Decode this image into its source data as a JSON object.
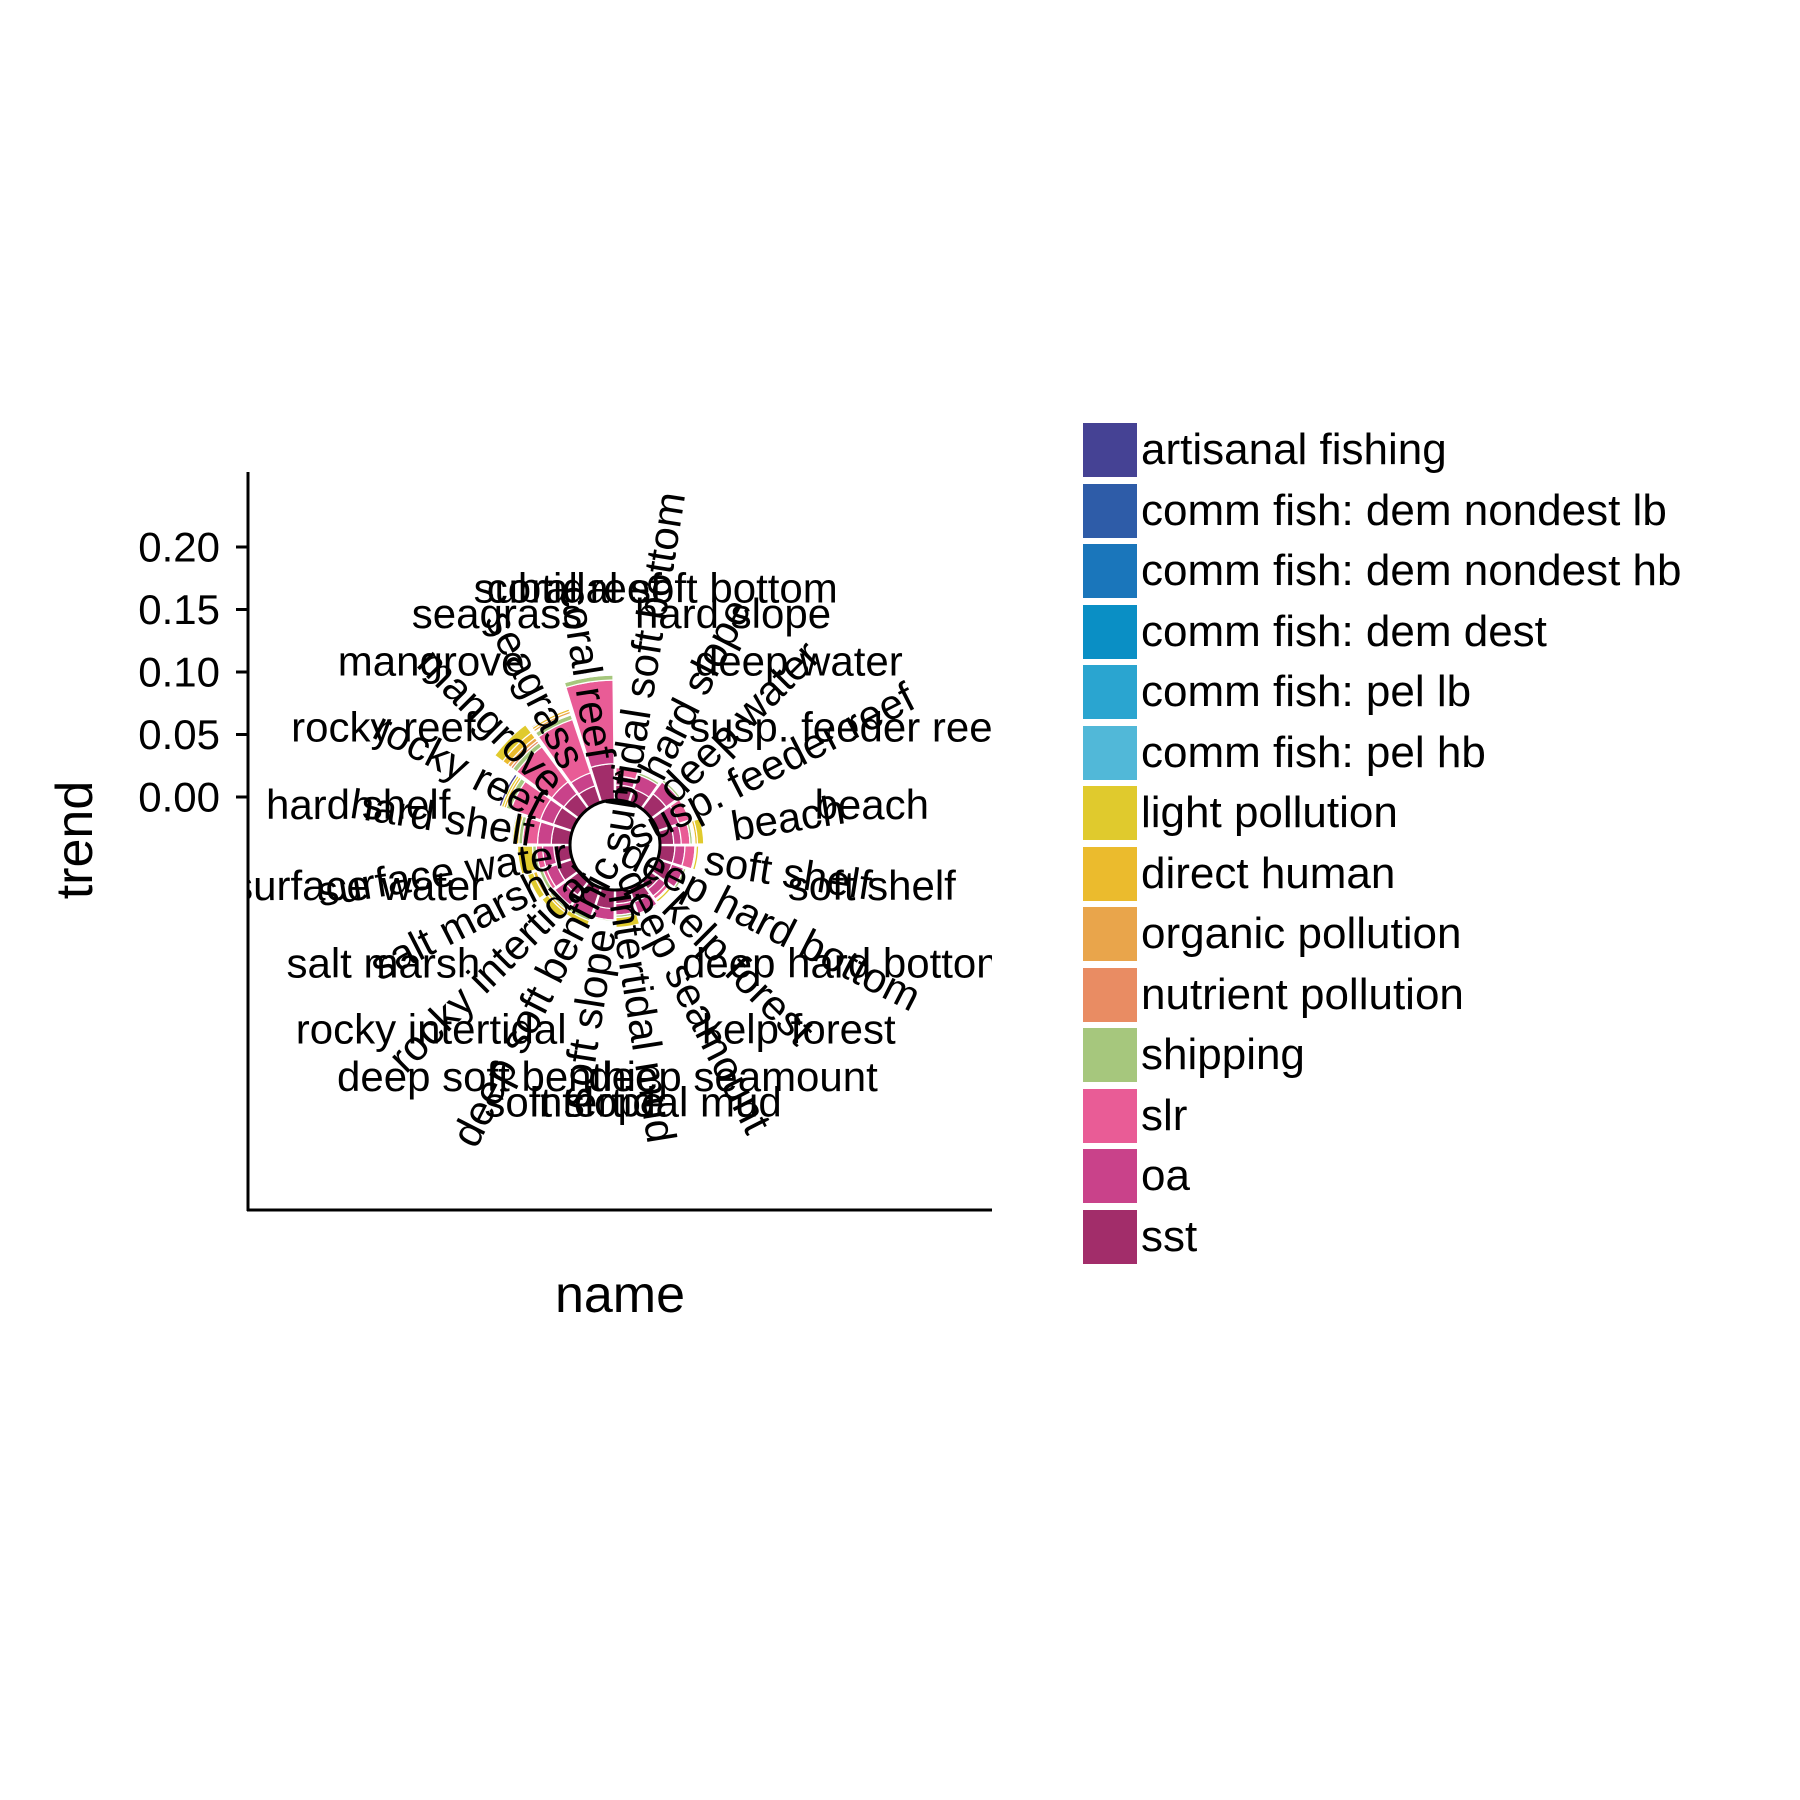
{
  "chart_data": {
    "type": "bar",
    "coordinate_system": "polar",
    "xlabel": "name",
    "ylabel": "trend",
    "y_ticks": [
      "0.00",
      "0.05",
      "0.10",
      "0.15",
      "0.20"
    ],
    "ylim": [
      0,
      0.25
    ],
    "legend_position": "right",
    "center_label": "1",
    "categories": [
      "subtidal soft bottom",
      "hard slope",
      "deep water",
      "susp. feeder reef",
      "beach",
      "soft shelf",
      "deep hard bottom",
      "kelp forest",
      "deep seamount",
      "intertidal mud",
      "soft slope",
      "deep soft benthic",
      "rocky intertidal",
      "salt marsh",
      "surface water",
      "hard shelf",
      "rocky reef",
      "mangrove",
      "seagrass",
      "coral reef"
    ],
    "inner_labels": [
      "subtidal soft bottom",
      "hard slope",
      "deep water",
      "susp. feeder reef",
      "beach",
      "soft shelf",
      "deep hard bottom",
      "kelp forest",
      "deep seamount",
      "intertidal mud",
      "soft slope",
      "deep soft benthic",
      "rocky intertidal",
      "salt marsh",
      "surface water",
      "hard shelf",
      "rocky reef",
      "mangrove",
      "seagrass",
      "coral reef"
    ],
    "outer_labels": [
      "subtidal soft bottom",
      "hard slope",
      "deep water",
      "susp. feeder reef",
      "beach",
      "soft shelf",
      "deep hard bottom",
      "kelp forest",
      "deep seamount",
      "intertidal mud",
      "soft slope",
      "deep soft benthic",
      "rocky intertidal",
      "salt marsh",
      "surface water",
      "hard shelf",
      "rocky reef",
      "mangrove",
      "seagrass",
      "coral reef"
    ],
    "series": [
      {
        "name": "artisanal fishing",
        "color": "#454294",
        "values": [
          0,
          0,
          0,
          0,
          0,
          0,
          0,
          0,
          0,
          0,
          0,
          0.001,
          0.001,
          0,
          0,
          0.001,
          0.002,
          0,
          0.001,
          0.001
        ]
      },
      {
        "name": "comm fish: dem nondest lb",
        "color": "#2E5CA8",
        "values": [
          0,
          0,
          0,
          0,
          0,
          0,
          0,
          0,
          0,
          0,
          0,
          0,
          0,
          0,
          0,
          0,
          0,
          0,
          0,
          0
        ]
      },
      {
        "name": "comm fish: dem nondest hb",
        "color": "#1A76BB",
        "values": [
          0,
          0,
          0,
          0,
          0,
          0,
          0,
          0,
          0,
          0,
          0,
          0,
          0,
          0,
          0,
          0,
          0,
          0,
          0,
          0
        ]
      },
      {
        "name": "comm fish: dem dest",
        "color": "#0A8FC5",
        "values": [
          0,
          0,
          0,
          0,
          0,
          0,
          0,
          0,
          0,
          0,
          0,
          0,
          0,
          0,
          0,
          0,
          0,
          0,
          0,
          0
        ]
      },
      {
        "name": "comm fish: pel lb",
        "color": "#2AA5D0",
        "values": [
          0,
          0,
          0,
          0,
          0,
          0,
          0,
          0,
          0,
          0,
          0,
          0,
          0,
          0,
          0,
          0,
          0,
          0,
          0,
          0
        ]
      },
      {
        "name": "comm fish: pel hb",
        "color": "#51B8D8",
        "values": [
          0,
          0,
          0,
          0,
          0,
          0,
          0,
          0,
          0,
          0,
          0,
          0,
          0,
          0,
          0,
          0,
          0,
          0,
          0,
          0
        ]
      },
      {
        "name": "light pollution",
        "color": "#E0CA2D",
        "values": [
          0,
          0,
          0,
          0,
          0.005,
          0.002,
          0,
          0.002,
          0,
          0.008,
          0,
          0.004,
          0.006,
          0.005,
          0.012,
          0.003,
          0.002,
          0.008,
          0,
          0.001
        ]
      },
      {
        "name": "direct human",
        "color": "#EBBB2D",
        "values": [
          0,
          0,
          0,
          0,
          0.002,
          0,
          0,
          0,
          0,
          0,
          0,
          0,
          0.002,
          0.003,
          0,
          0.002,
          0.002,
          0.005,
          0.002,
          0.001
        ]
      },
      {
        "name": "organic pollution",
        "color": "#E9A54B",
        "values": [
          0,
          0,
          0,
          0,
          0.001,
          0,
          0,
          0,
          0,
          0,
          0,
          0,
          0,
          0.001,
          0,
          0,
          0,
          0.003,
          0.002,
          0.001
        ]
      },
      {
        "name": "nutrient pollution",
        "color": "#E98C63",
        "values": [
          0,
          0,
          0,
          0,
          0.001,
          0,
          0,
          0,
          0,
          0,
          0,
          0,
          0,
          0.001,
          0,
          0,
          0,
          0.002,
          0.001,
          0
        ]
      },
      {
        "name": "shipping",
        "color": "#A6C77D",
        "values": [
          0.001,
          0.002,
          0.002,
          0.001,
          0.002,
          0.001,
          0.002,
          0.001,
          0.001,
          0.002,
          0.001,
          0.003,
          0.002,
          0.003,
          0.003,
          0.003,
          0.004,
          0.004,
          0.004,
          0.004
        ]
      },
      {
        "name": "slr",
        "color": "#E95C96",
        "values": [
          0.007,
          0,
          0,
          0.009,
          0.007,
          0.008,
          0,
          0.003,
          0,
          0,
          0,
          0,
          0.003,
          0.003,
          0.005,
          0.012,
          0.025,
          0.035,
          0.045,
          0.057
        ]
      },
      {
        "name": "oa",
        "color": "#C9428A",
        "values": [
          0.007,
          0.012,
          0.012,
          0.009,
          0.006,
          0.008,
          0.01,
          0.007,
          0.01,
          0.009,
          0.009,
          0.01,
          0.01,
          0.009,
          0.009,
          0.011,
          0.011,
          0.012,
          0.011,
          0.01
        ]
      },
      {
        "name": "sst",
        "color": "#A22D6A",
        "values": [
          0.012,
          0.011,
          0.015,
          0.009,
          0.011,
          0.012,
          0.012,
          0.008,
          0.012,
          0.011,
          0.015,
          0.015,
          0.014,
          0.013,
          0.013,
          0.015,
          0.016,
          0.015,
          0.014,
          0.029
        ]
      }
    ]
  }
}
